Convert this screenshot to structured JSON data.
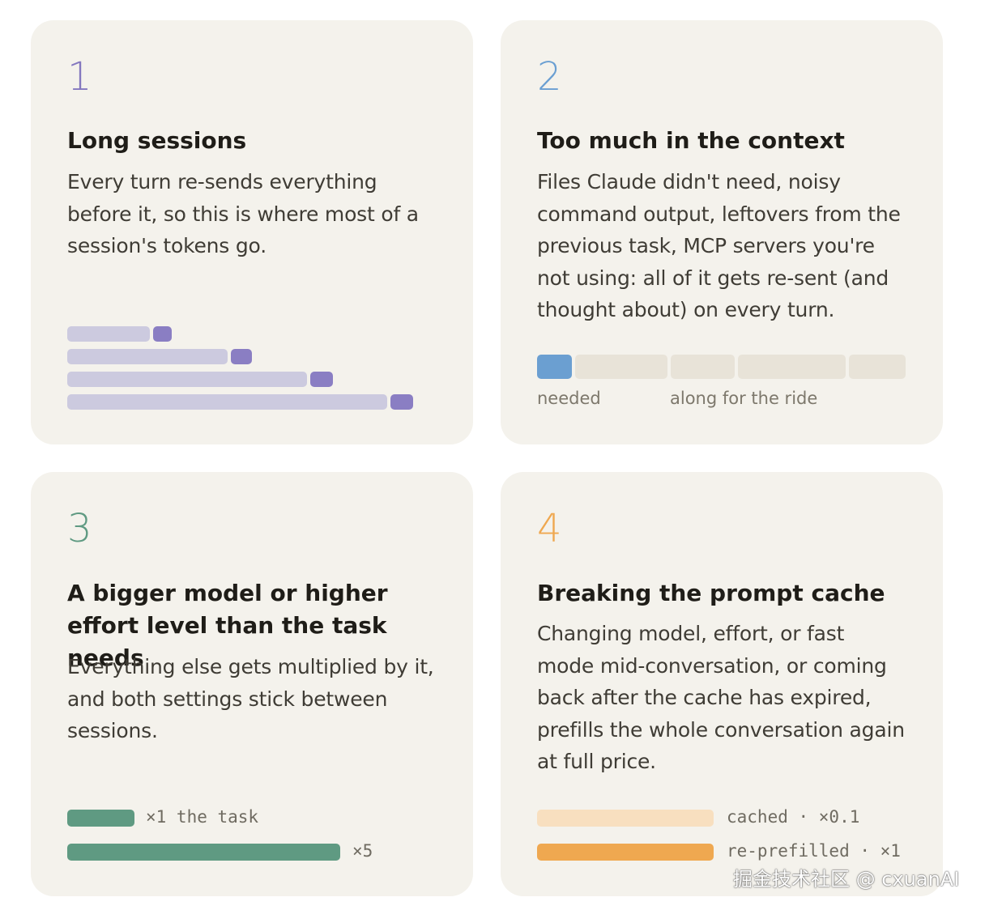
{
  "cards": [
    {
      "number": "1",
      "title": "Long sessions",
      "body": "Every turn re-sends everything before it, so this is where most of a session's tokens go.",
      "accent": "#8478bf"
    },
    {
      "number": "2",
      "title": "Too much in the context",
      "body": "Files Claude didn't need, noisy command output, leftovers from the previous task, MCP servers you're not using: all of it gets re-sent (and thought about) on every turn.",
      "accent": "#6a9fd2",
      "labels": {
        "needed": "needed",
        "along": "along for the ride"
      }
    },
    {
      "number": "3",
      "title": "A bigger model or higher effort level than the task needs",
      "body": "Everything else gets multiplied by it, and both settings stick between sessions.",
      "accent": "#5f9a82",
      "bars": [
        {
          "label": "×1 the task"
        },
        {
          "label": "×5"
        }
      ]
    },
    {
      "number": "4",
      "title": "Breaking the prompt cache",
      "body": "Changing model, effort, or fast mode mid-conversation, or coming back after the cache has expired, prefills the whole conversation again at full price.",
      "accent": "#efa850",
      "bars": [
        {
          "label": "cached · ×0.1"
        },
        {
          "label": "re-prefilled · ×1"
        }
      ]
    }
  ],
  "watermark": "掘金技术社区 @ cxuanAI"
}
